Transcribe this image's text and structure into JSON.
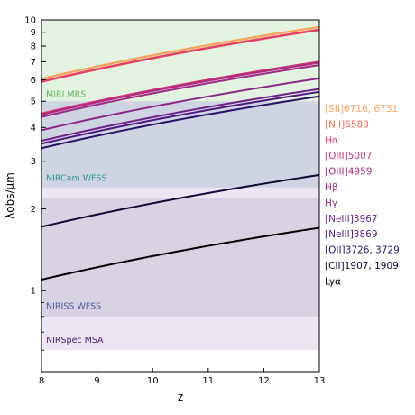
{
  "chart_data": {
    "type": "line",
    "xlabel": "z",
    "ylabel": "λobs/μm",
    "xlim": [
      8,
      13
    ],
    "ylim": [
      0.5,
      10
    ],
    "yscale": "log",
    "x_ticks": [
      8,
      9,
      10,
      11,
      12,
      13
    ],
    "y_ticks": [
      {
        "value": 1,
        "label": "1"
      },
      {
        "value": 2,
        "label": "2"
      },
      {
        "value": 3,
        "label": "3"
      },
      {
        "value": 4,
        "label": "4"
      },
      {
        "value": 5,
        "label": "5"
      },
      {
        "value": 6,
        "label": "6"
      },
      {
        "value": 7,
        "label": "7"
      },
      {
        "value": 8,
        "label": "8"
      },
      {
        "value": 9,
        "label": "9"
      },
      {
        "value": 10,
        "label": "10"
      }
    ],
    "regions": [
      {
        "name": "MIRI MRS",
        "ymin": 4.9,
        "ymax": 10,
        "color": "#e3f1df",
        "text_color": "#62b462"
      },
      {
        "name": "NIRCam WFSS",
        "ymin": 2.4,
        "ymax": 5.0,
        "color": "#cdd3e0",
        "text_color": "#2f9494"
      },
      {
        "name": "NIRISS WFSS",
        "ymin": 0.8,
        "ymax": 2.2,
        "color": "#d7d1e2",
        "text_color": "#4a5a98"
      },
      {
        "name": "NIRSpec MSA",
        "ymin": 0.6,
        "ymax": 5.3,
        "color": "#ebe5f1",
        "text_color": "#4a1a6a"
      }
    ],
    "series": [
      {
        "name": "[SII]6716, 6731",
        "color": "#f9a05e",
        "rest_um": [
          0.6716,
          0.6731
        ]
      },
      {
        "name": "[NII]6583",
        "color": "#f16d56",
        "rest_um": [
          0.6548,
          0.6583
        ]
      },
      {
        "name": "Hα",
        "color": "#e33d6b",
        "rest_um": [
          0.6563
        ]
      },
      {
        "name": "[OIII]5007",
        "color": "#cc3777",
        "rest_um": [
          0.5007
        ]
      },
      {
        "name": "[OIII]4959",
        "color": "#b02a7e",
        "rest_um": [
          0.4959
        ]
      },
      {
        "name": "Hβ",
        "color": "#9c2b85",
        "rest_um": [
          0.4861
        ]
      },
      {
        "name": "Hγ",
        "color": "#8a2a87",
        "rest_um": [
          0.4341
        ]
      },
      {
        "name": "[NeIII]3967",
        "color": "#6e2286",
        "rest_um": [
          0.3967
        ]
      },
      {
        "name": "[NeIII]3869",
        "color": "#4f1880",
        "rest_um": [
          0.3869
        ]
      },
      {
        "name": "[OII]3726, 3729",
        "color": "#2a1266",
        "rest_um": [
          0.3726
        ]
      },
      {
        "name": "[CII]1907, 1909",
        "color": "#120a33",
        "rest_um": [
          0.1907
        ]
      },
      {
        "name": "Lyα",
        "color": "#000000",
        "rest_um": [
          0.1216
        ]
      }
    ]
  }
}
